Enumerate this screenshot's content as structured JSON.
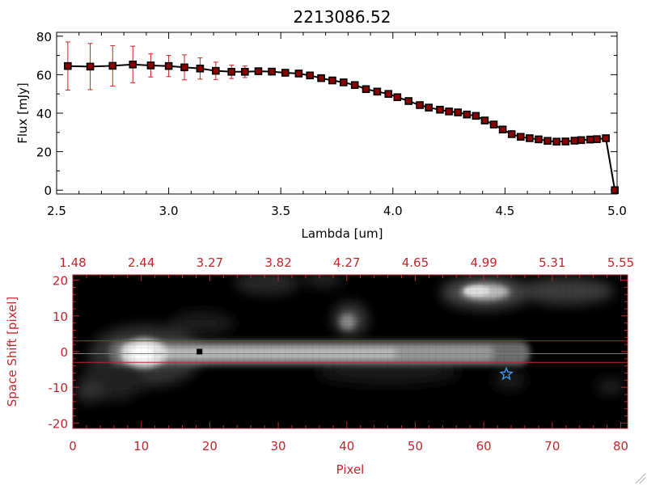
{
  "chart_data": [
    {
      "type": "line",
      "title": "2213086.52",
      "xlabel": "Lambda [um]",
      "ylabel": "Flux [mJy]",
      "xlim": [
        2.5,
        5.0
      ],
      "ylim": [
        -2,
        82
      ],
      "x_ticks": [
        "2.5",
        "3.0",
        "3.5",
        "4.0",
        "4.5",
        "5.0"
      ],
      "y_ticks": [
        "0",
        "20",
        "40",
        "60",
        "80"
      ],
      "grid": false,
      "colors": {
        "line": "#000000",
        "marker": "#8b0000",
        "error_bar": "#cc2222"
      },
      "series": [
        {
          "x": [
            2.55,
            2.65,
            2.75,
            2.84,
            2.92,
            3.0,
            3.07,
            3.14,
            3.21,
            3.28,
            3.34,
            3.4,
            3.46,
            3.52,
            3.58,
            3.63,
            3.68,
            3.73,
            3.78,
            3.83,
            3.88,
            3.93,
            3.98,
            4.02,
            4.07,
            4.12,
            4.16,
            4.21,
            4.25,
            4.29,
            4.33,
            4.37,
            4.41,
            4.45,
            4.49,
            4.53,
            4.57,
            4.61,
            4.65,
            4.69,
            4.73,
            4.77,
            4.81,
            4.84,
            4.88,
            4.91,
            4.95,
            4.99
          ],
          "y": [
            64.5,
            64.2,
            64.6,
            65.3,
            64.8,
            64.5,
            63.8,
            63.2,
            62.0,
            61.5,
            61.5,
            61.8,
            61.6,
            61.0,
            60.6,
            59.6,
            58.2,
            57.0,
            56.0,
            54.6,
            52.5,
            51.2,
            50.0,
            48.3,
            46.3,
            44.2,
            42.9,
            41.8,
            40.9,
            40.4,
            39.3,
            38.6,
            36.2,
            34.1,
            31.5,
            29.1,
            27.7,
            27.0,
            26.4,
            25.6,
            25.2,
            25.3,
            25.7,
            26.0,
            26.3,
            26.5,
            27.0,
            0.0
          ],
          "yerr": [
            12.5,
            12.0,
            10.5,
            9.5,
            6.0,
            5.5,
            6.5,
            5.5,
            4.5,
            3.5,
            3.0,
            1.5,
            1,
            1,
            1,
            1,
            1,
            1,
            1,
            1,
            1,
            1,
            1,
            1,
            1,
            1,
            1,
            1,
            1,
            1,
            1,
            1,
            1,
            1,
            1,
            1,
            1,
            1,
            1,
            1,
            1,
            1,
            1,
            1,
            1,
            1,
            1,
            1
          ]
        }
      ]
    },
    {
      "type": "heatmap",
      "xlabel": "Pixel",
      "ylabel": "Space Shift [pixel]",
      "xlim": [
        0,
        81
      ],
      "ylim": [
        -21.5,
        21.5
      ],
      "x_ticks": [
        "0",
        "10",
        "20",
        "30",
        "40",
        "50",
        "60",
        "70",
        "80"
      ],
      "y_ticks": [
        "-20",
        "-10",
        "0",
        "10",
        "20"
      ],
      "top_axis_ticks": [
        "1.48",
        "2.44",
        "3.27",
        "3.82",
        "4.27",
        "4.65",
        "4.99",
        "5.31",
        "5.55"
      ],
      "colors": {
        "axis": "#c0282d",
        "star": "#3aa0ff",
        "background": "#000000"
      },
      "markers": [
        {
          "type": "square",
          "x": 18.5,
          "y": 0,
          "color": "#000000"
        },
        {
          "type": "star",
          "x": 63.3,
          "y": -6.3,
          "color": "#3aa0ff"
        }
      ],
      "reference_lines_y": [
        3,
        -3
      ]
    }
  ]
}
